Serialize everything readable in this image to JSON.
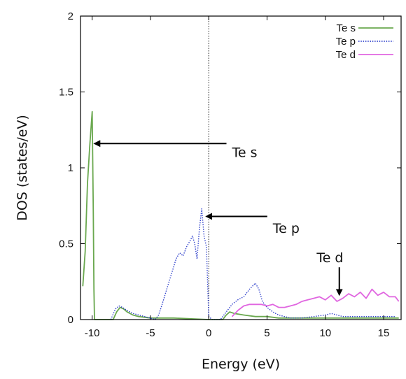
{
  "chart_data": {
    "type": "line",
    "title": "",
    "xlabel": "Energy (eV)",
    "ylabel": "DOS (states/eV)",
    "xlim": [
      -11,
      16.5
    ],
    "ylim": [
      0,
      2
    ],
    "xticks": [
      -10,
      -5,
      0,
      5,
      10,
      15
    ],
    "yticks": [
      0,
      0.5,
      1,
      1.5,
      2
    ],
    "xtick_labels": [
      "-10",
      "-5",
      "0",
      "5",
      "10",
      "15"
    ],
    "ytick_labels": [
      "0",
      "0.5",
      "1",
      "1.5",
      "2"
    ],
    "grid": false,
    "legend_position": "top-right",
    "fermi_level": 0,
    "series": [
      {
        "name": "Te s",
        "color": "#6aa84f",
        "dash": "solid",
        "x": [
          -10.8,
          -10.6,
          -10.4,
          -10.2,
          -10.0,
          -9.9,
          -9.85,
          -9.8,
          -9.0,
          -8.2,
          -7.9,
          -7.6,
          -7.3,
          -7.0,
          -6.5,
          -6.0,
          -5.0,
          -3.0,
          0.0,
          1.2,
          1.5,
          1.8,
          2.2,
          3.0,
          4.0,
          5.0,
          6.0,
          7.0,
          8.0,
          16.3
        ],
        "y": [
          0.22,
          0.45,
          0.9,
          1.15,
          1.37,
          0.7,
          0.2,
          0.0,
          0.0,
          0.0,
          0.05,
          0.08,
          0.07,
          0.05,
          0.03,
          0.02,
          0.01,
          0.01,
          0.0,
          0.0,
          0.03,
          0.05,
          0.04,
          0.03,
          0.02,
          0.02,
          0.01,
          0.01,
          0.01,
          0.01
        ]
      },
      {
        "name": "Te p",
        "color": "#3344cc",
        "dash": "dotted",
        "x": [
          -8.4,
          -8.0,
          -7.7,
          -7.4,
          -7.0,
          -6.5,
          -6.0,
          -5.5,
          -5.0,
          -4.6,
          -4.3,
          -4.0,
          -3.6,
          -3.2,
          -2.8,
          -2.5,
          -2.2,
          -1.9,
          -1.6,
          -1.4,
          -1.2,
          -1.0,
          -0.8,
          -0.6,
          -0.4,
          -0.2,
          0.0,
          0.3,
          1.0,
          1.3,
          1.6,
          2.0,
          2.5,
          3.0,
          3.5,
          4.0,
          4.3,
          4.6,
          5.0,
          5.5,
          6.0,
          6.5,
          7.0,
          8.0,
          9.0,
          10.0,
          10.5,
          11.0,
          11.5,
          12.0,
          13.0,
          14.0,
          15.0,
          16.0
        ],
        "y": [
          0.0,
          0.07,
          0.09,
          0.08,
          0.06,
          0.04,
          0.03,
          0.02,
          0.01,
          0.0,
          0.03,
          0.1,
          0.2,
          0.3,
          0.4,
          0.44,
          0.42,
          0.48,
          0.52,
          0.55,
          0.5,
          0.4,
          0.6,
          0.73,
          0.55,
          0.48,
          0.02,
          0.0,
          0.0,
          0.03,
          0.06,
          0.1,
          0.13,
          0.15,
          0.2,
          0.24,
          0.2,
          0.12,
          0.08,
          0.05,
          0.03,
          0.02,
          0.01,
          0.01,
          0.02,
          0.03,
          0.04,
          0.03,
          0.02,
          0.02,
          0.02,
          0.02,
          0.02,
          0.02
        ]
      },
      {
        "name": "Te d",
        "color": "#e066e0",
        "dash": "solid",
        "x": [
          2.0,
          2.5,
          3.0,
          3.5,
          4.0,
          4.5,
          5.0,
          5.5,
          6.0,
          6.5,
          7.0,
          7.5,
          8.0,
          8.5,
          9.0,
          9.5,
          10.0,
          10.5,
          11.0,
          11.5,
          12.0,
          12.5,
          13.0,
          13.5,
          14.0,
          14.5,
          15.0,
          15.5,
          16.0,
          16.3
        ],
        "y": [
          0.02,
          0.06,
          0.09,
          0.1,
          0.1,
          0.1,
          0.09,
          0.1,
          0.08,
          0.08,
          0.09,
          0.1,
          0.12,
          0.13,
          0.14,
          0.15,
          0.13,
          0.16,
          0.12,
          0.14,
          0.17,
          0.15,
          0.18,
          0.14,
          0.2,
          0.16,
          0.18,
          0.15,
          0.15,
          0.12
        ]
      }
    ],
    "annotations": [
      {
        "text": "Te s",
        "x": 2.0,
        "y": 1.1,
        "arrow_to": [
          -9.9,
          1.16
        ]
      },
      {
        "text": "Te p",
        "x": 5.5,
        "y": 0.6,
        "arrow_to": [
          -0.3,
          0.68
        ]
      },
      {
        "text": "Te d",
        "x": 10.4,
        "y": 0.4,
        "arrow_to": [
          11.2,
          0.16
        ]
      }
    ]
  }
}
